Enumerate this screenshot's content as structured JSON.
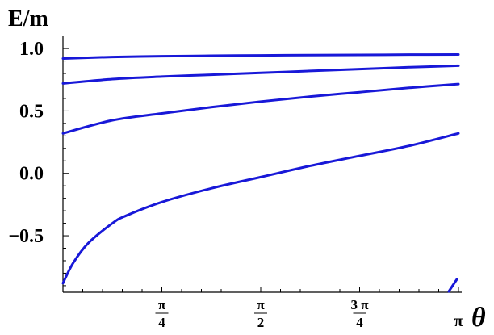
{
  "chart_data": {
    "type": "line",
    "title": "",
    "ylabel": "E/m",
    "xlabel": "θ",
    "xlim": [
      0,
      3.1416
    ],
    "ylim": [
      -0.92,
      1.02
    ],
    "y_ticks": [
      {
        "value": 1.0,
        "label": "1.0"
      },
      {
        "value": 0.5,
        "label": "0.5"
      },
      {
        "value": 0.0,
        "label": "0.0"
      },
      {
        "value": -0.5,
        "label": "-0.5"
      }
    ],
    "x_ticks": [
      {
        "value": 0.7854,
        "num": "π",
        "den": "4"
      },
      {
        "value": 1.5708,
        "num": "π",
        "den": "2"
      },
      {
        "value": 2.3562,
        "num": "3 π",
        "den": "4"
      },
      {
        "value": 3.1416,
        "label": "π"
      }
    ],
    "line_color": "#1818d8",
    "series": [
      {
        "x": [
          0,
          0.3927,
          0.7854,
          1.1781,
          1.5708,
          1.9635,
          2.3562,
          2.7489,
          3.1416
        ],
        "y": [
          0.92,
          0.932,
          0.938,
          0.942,
          0.945,
          0.947,
          0.949,
          0.951,
          0.952
        ]
      },
      {
        "x": [
          0,
          0.3927,
          0.7854,
          1.1781,
          1.5708,
          1.9635,
          2.3562,
          2.7489,
          3.1416
        ],
        "y": [
          0.72,
          0.755,
          0.775,
          0.79,
          0.805,
          0.82,
          0.835,
          0.85,
          0.862
        ]
      },
      {
        "x": [
          0,
          0.3927,
          0.7854,
          1.1781,
          1.5708,
          1.9635,
          2.3562,
          2.7489,
          3.1416
        ],
        "y": [
          0.32,
          0.425,
          0.48,
          0.53,
          0.575,
          0.615,
          0.65,
          0.685,
          0.715
        ]
      },
      {
        "x": [
          0,
          0.08,
          0.2,
          0.3927,
          0.5,
          0.7854,
          1.1781,
          1.5708,
          1.9635,
          2.3562,
          2.7489,
          3.1416
        ],
        "y": [
          -0.88,
          -0.72,
          -0.56,
          -0.4,
          -0.34,
          -0.23,
          -0.12,
          -0.03,
          0.06,
          0.14,
          0.22,
          0.32
        ]
      }
    ]
  }
}
